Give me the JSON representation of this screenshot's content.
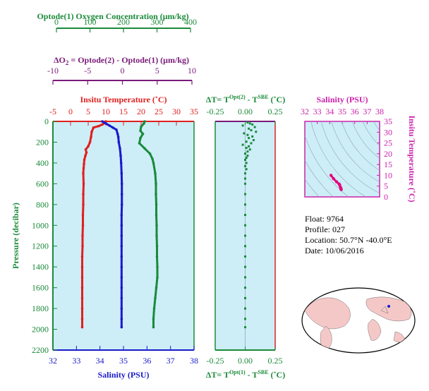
{
  "colors": {
    "oxygen": "#1a8a3a",
    "delta_o2": "#7a1a7a",
    "temperature": "#e02020",
    "salinity": "#1a1acc",
    "dT": "#1a8a3a",
    "sal_T_title": "#cc22aa",
    "panel_bg": "#cdeef7"
  },
  "info": {
    "float": "Float:  9764",
    "profile": "Profile:  027",
    "location": "Location:  50.7°N  -40.0°E",
    "date": "Date:  10/06/2016"
  },
  "chart_data": [
    {
      "type": "line",
      "panel": "profiles",
      "title_oxygen": "Optode(1) Oxygen Concentration  (μm/kg)",
      "oxygen_ticks": [
        "0",
        "100",
        "200",
        "300",
        "400"
      ],
      "title_delta_lhs": "ΔO",
      "title_delta_sub": "2",
      "title_delta_rhs": " = Optode(2) - Optode(1)    (μm/kg)",
      "delta_ticks": [
        "-10",
        "-5",
        "0",
        "5",
        "10"
      ],
      "title_temperature": "Insitu Temperature  (˚C)",
      "temperature_ticks": [
        "-5",
        "0",
        "5",
        "10",
        "15",
        "20",
        "25",
        "30",
        "35"
      ],
      "xlabel": "Salinity (PSU)",
      "salinity_ticks": [
        "32",
        "33",
        "34",
        "35",
        "36",
        "37",
        "38"
      ],
      "ylabel": "Pressure (decibar)",
      "pressure_ticks": [
        "0",
        "200",
        "400",
        "600",
        "800",
        "1000",
        "1200",
        "1400",
        "1600",
        "1800",
        "2000",
        "2200"
      ],
      "ylim": [
        0,
        2200
      ],
      "temperature_xlim": [
        -5,
        35
      ],
      "salinity_xlim": [
        32,
        38
      ],
      "oxygen_xlim": [
        0,
        400
      ],
      "series": [
        {
          "name": "Insitu Temperature",
          "units": "°C",
          "points": [
            [
              10,
              0
            ],
            [
              9.6,
              15
            ],
            [
              9,
              30
            ],
            [
              8,
              45
            ],
            [
              6.5,
              60
            ],
            [
              6,
              100
            ],
            [
              5.8,
              150
            ],
            [
              5.5,
              200
            ],
            [
              5,
              240
            ],
            [
              4.3,
              270
            ],
            [
              4.5,
              300
            ],
            [
              4.2,
              330
            ],
            [
              3.9,
              370
            ],
            [
              3.8,
              410
            ],
            [
              3.7,
              450
            ],
            [
              3.6,
              500
            ],
            [
              3.7,
              600
            ],
            [
              3.6,
              700
            ],
            [
              3.6,
              800
            ],
            [
              3.5,
              900
            ],
            [
              3.5,
              1000
            ],
            [
              3.4,
              1100
            ],
            [
              3.4,
              1200
            ],
            [
              3.3,
              1300
            ],
            [
              3.3,
              1400
            ],
            [
              3.3,
              1500
            ],
            [
              3.3,
              1600
            ],
            [
              3.3,
              1700
            ],
            [
              3.3,
              1800
            ],
            [
              3.3,
              1900
            ],
            [
              3.3,
              1980
            ]
          ]
        },
        {
          "name": "Salinity",
          "units": "PSU",
          "points": [
            [
              34.1,
              0
            ],
            [
              34.25,
              20
            ],
            [
              34.4,
              40
            ],
            [
              34.55,
              60
            ],
            [
              34.7,
              80
            ],
            [
              34.75,
              120
            ],
            [
              34.78,
              150
            ],
            [
              34.8,
              200
            ],
            [
              34.85,
              260
            ],
            [
              34.88,
              330
            ],
            [
              34.9,
              400
            ],
            [
              34.92,
              500
            ],
            [
              34.93,
              600
            ],
            [
              34.93,
              700
            ],
            [
              34.93,
              800
            ],
            [
              34.92,
              900
            ],
            [
              34.92,
              1000
            ],
            [
              34.92,
              1100
            ],
            [
              34.92,
              1200
            ],
            [
              34.92,
              1300
            ],
            [
              34.92,
              1400
            ],
            [
              34.92,
              1500
            ],
            [
              34.92,
              1600
            ],
            [
              34.92,
              1700
            ],
            [
              34.92,
              1800
            ],
            [
              34.92,
              1900
            ],
            [
              34.92,
              1980
            ]
          ]
        },
        {
          "name": "Optode(1) Oxygen Concentration",
          "units": "μm/kg",
          "points": [
            [
              260,
              0
            ],
            [
              258,
              20
            ],
            [
              250,
              50
            ],
            [
              248,
              90
            ],
            [
              255,
              120
            ],
            [
              248,
              160
            ],
            [
              245,
              210
            ],
            [
              260,
              260
            ],
            [
              275,
              310
            ],
            [
              282,
              360
            ],
            [
              285,
              400
            ],
            [
              290,
              500
            ],
            [
              292,
              600
            ],
            [
              292,
              700
            ],
            [
              293,
              800
            ],
            [
              293,
              900
            ],
            [
              294,
              1000
            ],
            [
              294,
              1100
            ],
            [
              295,
              1200
            ],
            [
              295,
              1300
            ],
            [
              296,
              1400
            ],
            [
              296,
              1500
            ],
            [
              293,
              1600
            ],
            [
              290,
              1700
            ],
            [
              287,
              1800
            ],
            [
              285,
              1900
            ],
            [
              285,
              1980
            ]
          ]
        }
      ]
    },
    {
      "type": "scatter",
      "panel": "delta_t",
      "title_lhs": "ΔT= T",
      "title_sup1": "Opt(2)",
      "title_mid": " - T",
      "title_sup2": "SBE",
      "title_rhs": " (˚C)",
      "xlabel_lhs": "ΔT= T",
      "xlabel_sup1": "Opt(1)",
      "xlabel_mid": " - T",
      "xlabel_sup2": "SBE",
      "xlabel_rhs": " (˚C)",
      "x_ticks": [
        "-0.25",
        "0.00",
        "0.25"
      ],
      "xlim": [
        -0.25,
        0.25
      ],
      "ylim": [
        0,
        2200
      ],
      "points": [
        [
          0.02,
          10
        ],
        [
          0.04,
          20
        ],
        [
          0.06,
          30
        ],
        [
          -0.02,
          40
        ],
        [
          0.08,
          55
        ],
        [
          0.03,
          70
        ],
        [
          0.05,
          85
        ],
        [
          0.09,
          100
        ],
        [
          -0.01,
          115
        ],
        [
          0.02,
          130
        ],
        [
          0.06,
          145
        ],
        [
          0.03,
          160
        ],
        [
          0.07,
          180
        ],
        [
          0.01,
          195
        ],
        [
          0.05,
          210
        ],
        [
          -0.02,
          225
        ],
        [
          0.03,
          240
        ],
        [
          0.01,
          255
        ],
        [
          0.04,
          270
        ],
        [
          0.02,
          290
        ],
        [
          0.0,
          310
        ],
        [
          0.02,
          330
        ],
        [
          0.01,
          350
        ],
        [
          0.0,
          370
        ],
        [
          0.01,
          400
        ],
        [
          0.0,
          430
        ],
        [
          0.01,
          460
        ],
        [
          0.0,
          500
        ],
        [
          0.0,
          550
        ],
        [
          0.0,
          600
        ],
        [
          0.0,
          700
        ],
        [
          0.0,
          800
        ],
        [
          0.0,
          900
        ],
        [
          0.0,
          1000
        ],
        [
          0.0,
          1100
        ],
        [
          0.0,
          1200
        ],
        [
          0.0,
          1300
        ],
        [
          0.0,
          1400
        ],
        [
          0.0,
          1500
        ],
        [
          0.0,
          1600
        ],
        [
          0.0,
          1700
        ],
        [
          0.0,
          1800
        ],
        [
          0.0,
          1900
        ],
        [
          0.0,
          1980
        ]
      ]
    },
    {
      "type": "scatter",
      "panel": "sal_temp",
      "title": "Salinity (PSU)",
      "x_ticks": [
        "32",
        "33",
        "34",
        "35",
        "36",
        "37",
        "38"
      ],
      "ylabel": "Insitu Temperature (˚C)",
      "y_ticks": [
        "0",
        "5",
        "10",
        "15",
        "20",
        "25",
        "30",
        "35"
      ],
      "xlim": [
        32,
        38
      ],
      "ylim": [
        0,
        35
      ],
      "points": [
        [
          34.1,
          10
        ],
        [
          34.3,
          8.5
        ],
        [
          34.55,
          7
        ],
        [
          34.75,
          6
        ],
        [
          34.8,
          5.5
        ],
        [
          34.85,
          4.6
        ],
        [
          34.9,
          4.0
        ],
        [
          34.9,
          3.6
        ],
        [
          34.92,
          3.4
        ]
      ]
    }
  ]
}
